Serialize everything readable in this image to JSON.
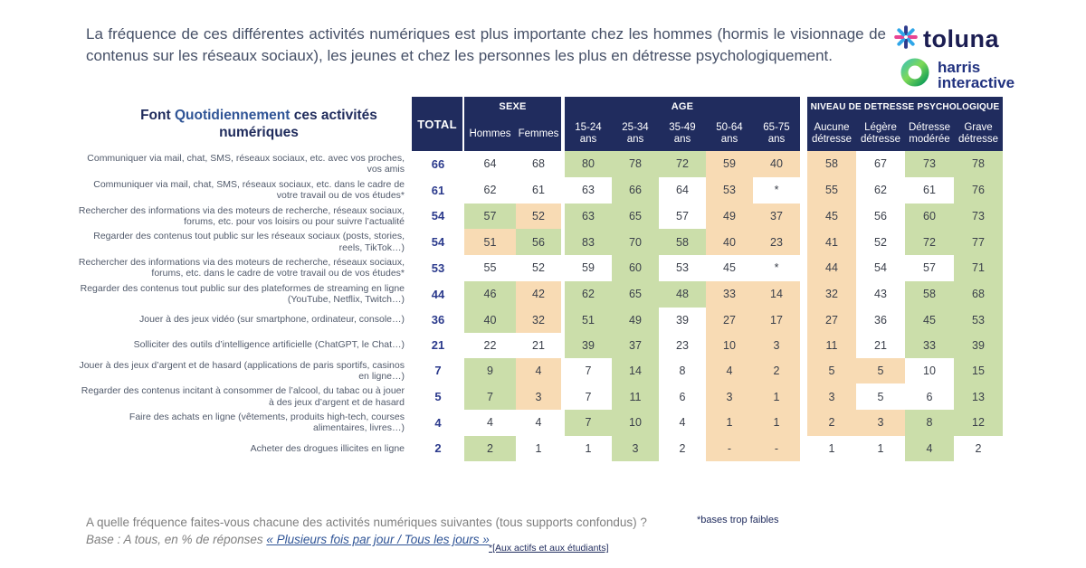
{
  "intro": {
    "text": "La fréquence de ces différentes activités numériques est plus importante chez les hommes (hormis le visionnage de contenus sur les réseaux sociaux), les jeunes et chez les personnes les plus en détresse psychologiquement."
  },
  "logo": {
    "toluna": "toluna",
    "harris_line1": "harris",
    "harris_line2": "interactive"
  },
  "table": {
    "title_prefix": "Font ",
    "title_highlight": "Quotidiennement",
    "title_suffix": " ces activités numériques"
  },
  "colors": {
    "header_navy": "#202c5e",
    "cell_green": "#cbdeaa",
    "cell_orange": "#f8dbb4",
    "total_blue": "#2b3a8c",
    "accent_blue": "#2f5496"
  },
  "chart_data": {
    "type": "table",
    "title": "Font Quotidiennement ces activités numériques",
    "legend_hint": "green cells = significantly higher, orange cells = significantly lower",
    "column_groups": [
      {
        "label": "",
        "columns": [
          "TOTAL"
        ]
      },
      {
        "label": "SEXE",
        "columns": [
          "Hommes",
          "Femmes"
        ]
      },
      {
        "label": "AGE",
        "columns": [
          "15-24 ans",
          "25-34 ans",
          "35-49 ans",
          "50-64 ans",
          "65-75 ans"
        ]
      },
      {
        "label": "NIVEAU DE DETRESSE PSYCHOLOGIQUE",
        "columns": [
          "Aucune détresse",
          "Légère détresse",
          "Détresse modérée",
          "Grave détresse"
        ]
      }
    ],
    "rows": [
      {
        "label": "Communiquer via mail, chat, SMS, réseaux sociaux, etc. avec vos proches, vos amis",
        "total": "66",
        "values": [
          "64",
          "68",
          "80",
          "78",
          "72",
          "59",
          "40",
          "58",
          "67",
          "73",
          "78"
        ],
        "bg": [
          "w",
          "w",
          "g",
          "g",
          "g",
          "o",
          "o",
          "o",
          "w",
          "g",
          "g"
        ]
      },
      {
        "label": "Communiquer via mail, chat, SMS, réseaux sociaux, etc. dans le cadre de votre travail ou de vos études*",
        "total": "61",
        "values": [
          "62",
          "61",
          "63",
          "66",
          "64",
          "53",
          "*",
          "55",
          "62",
          "61",
          "76"
        ],
        "bg": [
          "w",
          "w",
          "w",
          "g",
          "w",
          "o",
          "w",
          "o",
          "w",
          "w",
          "g"
        ]
      },
      {
        "label": "Rechercher des informations via des moteurs de recherche, réseaux sociaux, forums, etc. pour vos loisirs ou pour suivre l’actualité",
        "total": "54",
        "values": [
          "57",
          "52",
          "63",
          "65",
          "57",
          "49",
          "37",
          "45",
          "56",
          "60",
          "73"
        ],
        "bg": [
          "g",
          "o",
          "g",
          "g",
          "w",
          "o",
          "o",
          "o",
          "w",
          "g",
          "g"
        ]
      },
      {
        "label": "Regarder des contenus tout public sur les réseaux sociaux (posts, stories, reels, TikTok…)",
        "total": "54",
        "values": [
          "51",
          "56",
          "83",
          "70",
          "58",
          "40",
          "23",
          "41",
          "52",
          "72",
          "77"
        ],
        "bg": [
          "o",
          "g",
          "g",
          "g",
          "g",
          "o",
          "o",
          "o",
          "w",
          "g",
          "g"
        ]
      },
      {
        "label": "Rechercher des informations via des moteurs de recherche, réseaux sociaux, forums, etc. dans le cadre de votre travail ou de vos études*",
        "total": "53",
        "values": [
          "55",
          "52",
          "59",
          "60",
          "53",
          "45",
          "*",
          "44",
          "54",
          "57",
          "71"
        ],
        "bg": [
          "w",
          "w",
          "w",
          "g",
          "w",
          "w",
          "w",
          "o",
          "w",
          "w",
          "g"
        ]
      },
      {
        "label": "Regarder des contenus tout public sur des plateformes de streaming en ligne (YouTube, Netflix, Twitch…)",
        "total": "44",
        "values": [
          "46",
          "42",
          "62",
          "65",
          "48",
          "33",
          "14",
          "32",
          "43",
          "58",
          "68"
        ],
        "bg": [
          "g",
          "o",
          "g",
          "g",
          "g",
          "o",
          "o",
          "o",
          "w",
          "g",
          "g"
        ]
      },
      {
        "label": "Jouer à des jeux vidéo (sur smartphone, ordinateur, console…)",
        "total": "36",
        "values": [
          "40",
          "32",
          "51",
          "49",
          "39",
          "27",
          "17",
          "27",
          "36",
          "45",
          "53"
        ],
        "bg": [
          "g",
          "o",
          "g",
          "g",
          "w",
          "o",
          "o",
          "o",
          "w",
          "g",
          "g"
        ]
      },
      {
        "label": "Solliciter des outils d’intelligence artificielle (ChatGPT, le Chat…)",
        "total": "21",
        "values": [
          "22",
          "21",
          "39",
          "37",
          "23",
          "10",
          "3",
          "11",
          "21",
          "33",
          "39"
        ],
        "bg": [
          "w",
          "w",
          "g",
          "g",
          "w",
          "o",
          "o",
          "o",
          "w",
          "g",
          "g"
        ]
      },
      {
        "label": "Jouer à des jeux d’argent et de hasard (applications de paris sportifs, casinos en ligne…)",
        "total": "7",
        "values": [
          "9",
          "4",
          "7",
          "14",
          "8",
          "4",
          "2",
          "5",
          "5",
          "10",
          "15"
        ],
        "bg": [
          "g",
          "o",
          "w",
          "g",
          "w",
          "o",
          "o",
          "o",
          "o",
          "w",
          "g"
        ]
      },
      {
        "label": "Regarder des contenus incitant à consommer de l’alcool, du tabac ou à jouer à des jeux d’argent et de hasard",
        "total": "5",
        "values": [
          "7",
          "3",
          "7",
          "11",
          "6",
          "3",
          "1",
          "3",
          "5",
          "6",
          "13"
        ],
        "bg": [
          "g",
          "o",
          "w",
          "g",
          "w",
          "o",
          "o",
          "o",
          "w",
          "w",
          "g"
        ]
      },
      {
        "label": "Faire des achats en ligne (vêtements, produits high-tech, courses alimentaires, livres…)",
        "total": "4",
        "values": [
          "4",
          "4",
          "7",
          "10",
          "4",
          "1",
          "1",
          "2",
          "3",
          "8",
          "12"
        ],
        "bg": [
          "w",
          "w",
          "g",
          "g",
          "w",
          "o",
          "o",
          "o",
          "o",
          "g",
          "g"
        ]
      },
      {
        "label": "Acheter des drogues illicites en ligne",
        "total": "2",
        "values": [
          "2",
          "1",
          "1",
          "3",
          "2",
          "-",
          "-",
          "1",
          "1",
          "4",
          "2"
        ],
        "bg": [
          "g",
          "w",
          "w",
          "g",
          "w",
          "o",
          "o",
          "w",
          "w",
          "g",
          "w"
        ]
      }
    ]
  },
  "footer": {
    "question": "A quelle fréquence faites-vous chacune des activités numériques suivantes (tous supports confondus) ?",
    "base_prefix": "Base : A tous, en % de réponses ",
    "base_quote": "« Plusieurs fois par jour / Tous les jours »",
    "note_bases": "*bases trop faibles",
    "note_actifs": "*[Aux actifs et aux étudiants]"
  }
}
